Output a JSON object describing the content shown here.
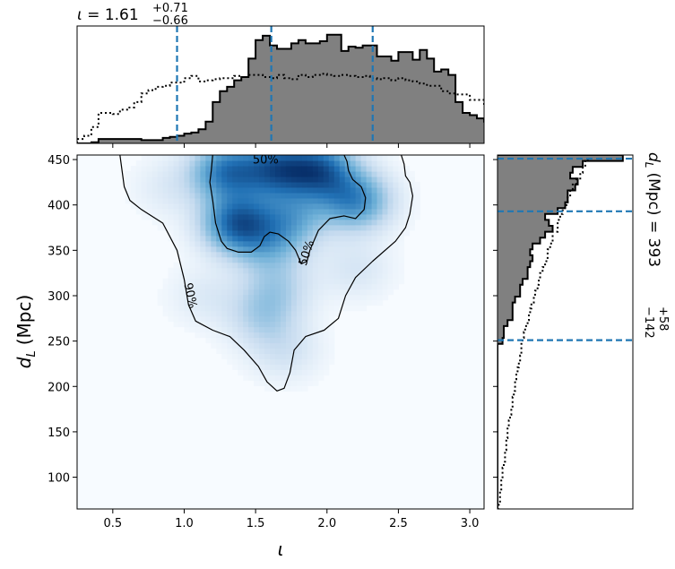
{
  "chart_data": [
    {
      "type": "heatmap",
      "xlabel": "ι",
      "ylabel_main": "d",
      "ylabel_sub": "L",
      "ylabel_unit": "(Mpc)",
      "xlim": [
        0.25,
        3.1
      ],
      "ylim": [
        65,
        455
      ],
      "xticks": [
        0.5,
        1.0,
        1.5,
        2.0,
        2.5,
        3.0
      ],
      "xtick_labels": [
        "0.5",
        "1.0",
        "1.5",
        "2.0",
        "2.5",
        "3.0"
      ],
      "yticks": [
        100,
        150,
        200,
        250,
        300,
        350,
        400,
        450
      ],
      "ytick_labels": [
        "100",
        "150",
        "200",
        "250",
        "300",
        "350",
        "400",
        "450"
      ],
      "colormap": [
        "#f7fbff",
        "#c6dbef",
        "#6baed6",
        "#2171b5",
        "#08306b"
      ],
      "density_peaks": [
        {
          "x": 1.38,
          "y": 380,
          "w": 1.0
        },
        {
          "x": 1.3,
          "y": 437,
          "w": 0.85
        },
        {
          "x": 1.65,
          "y": 440,
          "w": 0.9
        },
        {
          "x": 1.95,
          "y": 438,
          "w": 0.95
        },
        {
          "x": 2.2,
          "y": 405,
          "w": 0.75
        },
        {
          "x": 1.75,
          "y": 385,
          "w": 0.5
        },
        {
          "x": 1.6,
          "y": 355,
          "w": 0.35
        },
        {
          "x": 1.65,
          "y": 310,
          "w": 0.28
        },
        {
          "x": 1.55,
          "y": 278,
          "w": 0.3
        },
        {
          "x": 1.7,
          "y": 240,
          "w": 0.18
        },
        {
          "x": 1.15,
          "y": 300,
          "w": 0.12
        },
        {
          "x": 2.2,
          "y": 330,
          "w": 0.15
        },
        {
          "x": 0.9,
          "y": 420,
          "w": 0.12
        }
      ],
      "contours": [
        {
          "label": "50%",
          "points": [
            [
              1.2,
              455
            ],
            [
              1.19,
              438
            ],
            [
              1.18,
              425
            ],
            [
              1.2,
              405
            ],
            [
              1.22,
              380
            ],
            [
              1.26,
              360
            ],
            [
              1.3,
              352
            ],
            [
              1.38,
              348
            ],
            [
              1.47,
              348
            ],
            [
              1.53,
              355
            ],
            [
              1.56,
              365
            ],
            [
              1.6,
              370
            ],
            [
              1.66,
              368
            ],
            [
              1.73,
              360
            ],
            [
              1.78,
              350
            ],
            [
              1.82,
              335
            ],
            [
              1.86,
              338
            ],
            [
              1.88,
              350
            ],
            [
              1.94,
              372
            ],
            [
              2.02,
              385
            ],
            [
              2.12,
              388
            ],
            [
              2.2,
              385
            ],
            [
              2.26,
              395
            ],
            [
              2.27,
              408
            ],
            [
              2.24,
              420
            ],
            [
              2.18,
              428
            ],
            [
              2.15,
              438
            ],
            [
              2.14,
              448
            ],
            [
              2.12,
              455
            ]
          ]
        },
        {
          "label": "90%",
          "points": [
            [
              0.55,
              455
            ],
            [
              0.58,
              420
            ],
            [
              0.62,
              405
            ],
            [
              0.7,
              395
            ],
            [
              0.85,
              380
            ],
            [
              0.95,
              350
            ],
            [
              1.0,
              318
            ],
            [
              1.03,
              290
            ],
            [
              1.08,
              272
            ],
            [
              1.2,
              262
            ],
            [
              1.32,
              255
            ],
            [
              1.42,
              240
            ],
            [
              1.52,
              222
            ],
            [
              1.58,
              205
            ],
            [
              1.65,
              195
            ],
            [
              1.7,
              198
            ],
            [
              1.74,
              215
            ],
            [
              1.77,
              240
            ],
            [
              1.85,
              255
            ],
            [
              1.98,
              262
            ],
            [
              2.08,
              275
            ],
            [
              2.13,
              300
            ],
            [
              2.2,
              320
            ],
            [
              2.32,
              338
            ],
            [
              2.48,
              360
            ],
            [
              2.55,
              375
            ],
            [
              2.58,
              390
            ],
            [
              2.6,
              410
            ],
            [
              2.58,
              425
            ],
            [
              2.55,
              432
            ],
            [
              2.54,
              445
            ],
            [
              2.52,
              455
            ]
          ]
        }
      ]
    },
    {
      "type": "histogram",
      "axis": "ι",
      "title_symbol": "ι",
      "title_value": "1.61",
      "title_upper": "+0.71",
      "title_lower": "−0.66",
      "bin_start": 0.25,
      "bin_width": 0.05,
      "posterior_counts": [
        0,
        0,
        1,
        4,
        4,
        4,
        4,
        4,
        4,
        3,
        3,
        3,
        5,
        6,
        7,
        9,
        10,
        13,
        20,
        38,
        48,
        52,
        58,
        61,
        78,
        95,
        99,
        90,
        87,
        87,
        92,
        95,
        92,
        92,
        94,
        100,
        100,
        85,
        89,
        88,
        90,
        90,
        80,
        80,
        76,
        84,
        84,
        77,
        86,
        78,
        66,
        68,
        63,
        38,
        28,
        26,
        23,
        20,
        18,
        14,
        12,
        9,
        2,
        3,
        4,
        0,
        0
      ],
      "prior_counts": [
        4,
        7,
        15,
        28,
        28,
        27,
        31,
        33,
        38,
        46,
        49,
        52,
        53,
        56,
        56,
        60,
        62,
        57,
        58,
        59,
        60,
        60,
        62,
        61,
        63,
        63,
        61,
        60,
        63,
        60,
        59,
        63,
        61,
        63,
        64,
        63,
        62,
        63,
        62,
        61,
        62,
        60,
        59,
        60,
        58,
        60,
        58,
        57,
        55,
        53,
        53,
        48,
        46,
        45,
        45,
        40,
        40,
        35,
        29,
        25,
        23,
        19,
        18,
        14,
        7,
        5,
        4
      ],
      "quantile_lines": [
        0.95,
        1.61,
        2.32
      ],
      "xlim": [
        0.25,
        3.1
      ],
      "ylim": [
        0,
        108
      ]
    },
    {
      "type": "histogram",
      "axis": "d_L",
      "orientation": "horizontal",
      "title_symbol": "d",
      "title_sub": "L",
      "title_unit": "(Mpc)",
      "title_value": "393",
      "title_upper": "+58",
      "title_lower": "−142",
      "bin_start": 65,
      "bin_width": 6.5,
      "posterior_counts": [
        0,
        0,
        0,
        0,
        0,
        0,
        0,
        0,
        0,
        0,
        0,
        0,
        0,
        0,
        0,
        0,
        0,
        0,
        0,
        0,
        0,
        0,
        0,
        0,
        0,
        0,
        0,
        0,
        4,
        5,
        5,
        8,
        12,
        12,
        12,
        14,
        18,
        18,
        20,
        24,
        24,
        26,
        28,
        26,
        28,
        34,
        38,
        44,
        41,
        38,
        48,
        54,
        56,
        56,
        62,
        64,
        58,
        60,
        68,
        100
      ],
      "prior_counts": [
        1,
        2,
        2,
        3,
        3,
        4,
        4,
        5,
        6,
        6,
        7,
        7,
        8,
        8,
        9,
        10,
        11,
        12,
        12,
        13,
        14,
        14,
        15,
        16,
        17,
        18,
        19,
        19,
        20,
        21,
        22,
        24,
        25,
        26,
        27,
        29,
        30,
        32,
        33,
        34,
        36,
        38,
        40,
        40,
        42,
        44,
        44,
        48,
        48,
        50,
        52,
        55,
        56,
        58,
        60,
        63,
        66,
        68,
        70,
        72
      ],
      "quantile_lines": [
        251,
        393,
        451
      ],
      "ylim": [
        65,
        455
      ],
      "xlim": [
        0,
        108
      ]
    }
  ]
}
